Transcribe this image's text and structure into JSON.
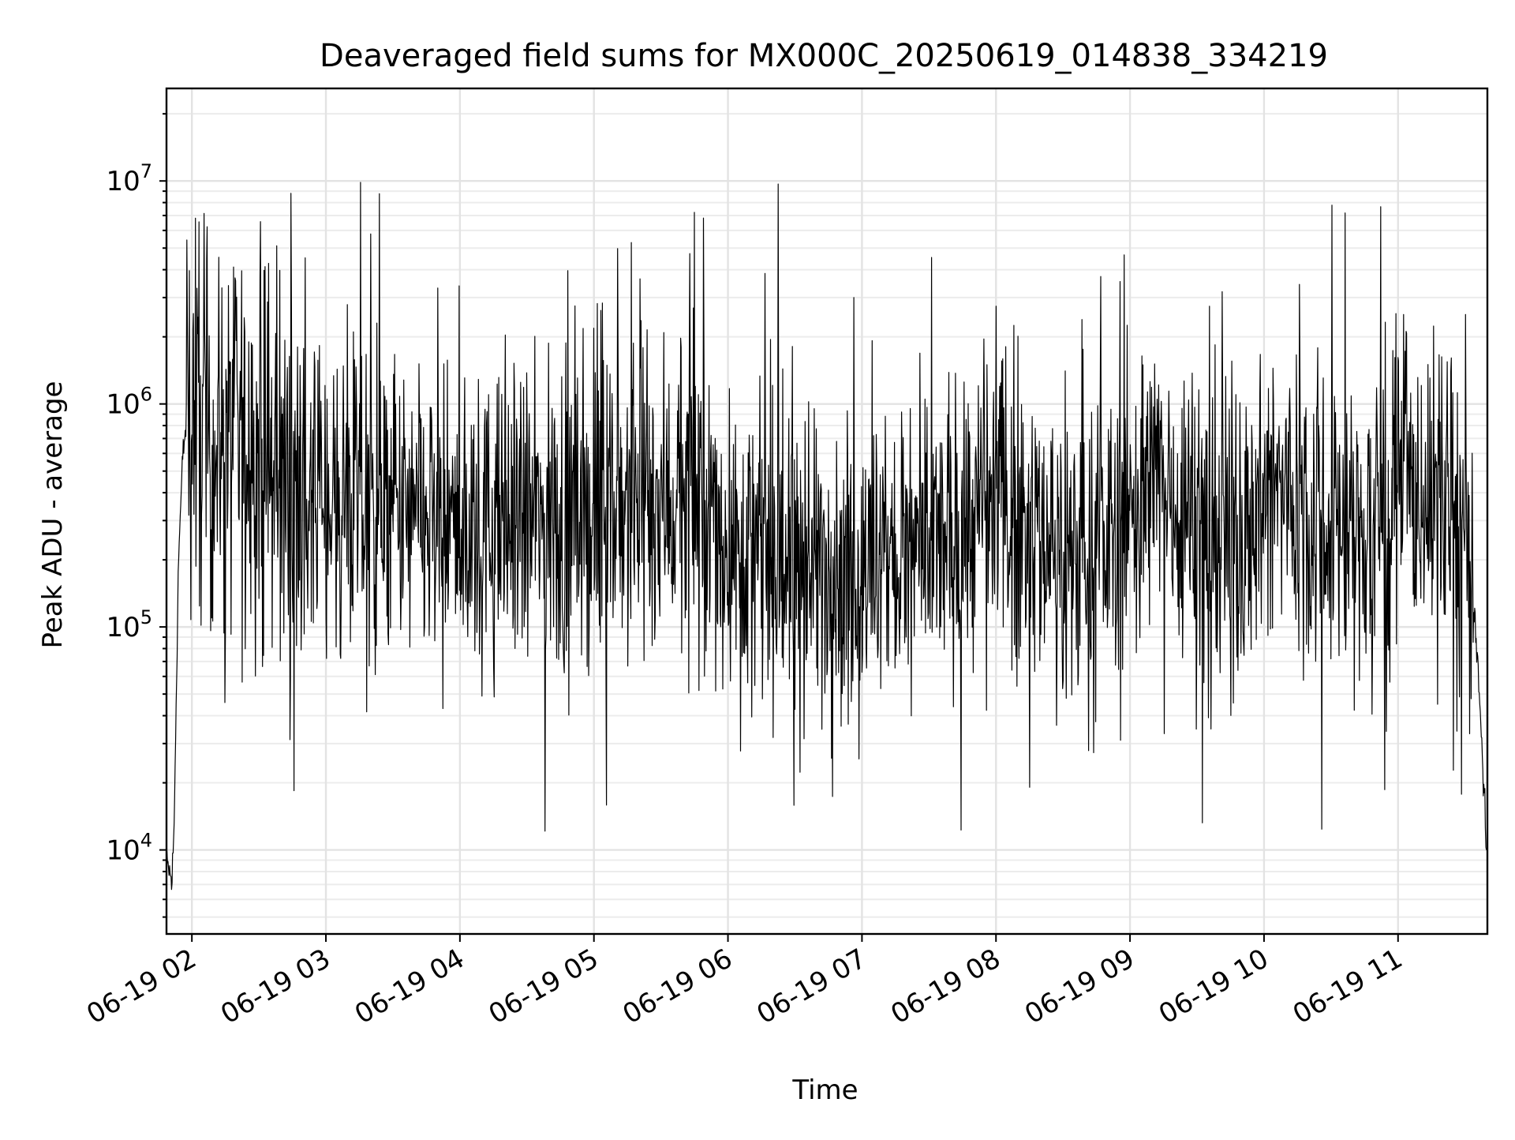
{
  "chart_data": {
    "type": "line",
    "title": "Deaveraged field sums for MX000C_20250619_014838_334219",
    "xlabel": "Time",
    "ylabel": "Peak ADU - average",
    "yscale": "log",
    "xlim": [
      "06-19 01:48:38",
      "06-19 11:40:00"
    ],
    "ylim": [
      4200,
      26000000
    ],
    "grid": true,
    "x_ticks": [
      "06-19 02",
      "06-19 03",
      "06-19 04",
      "06-19 05",
      "06-19 06",
      "06-19 07",
      "06-19 08",
      "06-19 09",
      "06-19 10",
      "06-19 11"
    ],
    "y_ticks": [
      {
        "value": 10000,
        "base": "10",
        "exp": "4"
      },
      {
        "value": 100000,
        "base": "10",
        "exp": "5"
      },
      {
        "value": 1000000,
        "base": "10",
        "exp": "6"
      },
      {
        "value": 10000000,
        "base": "10",
        "exp": "7"
      }
    ],
    "series": [
      {
        "color": "#000000",
        "x": [
          "06-19 01:48:38",
          "06-19 01:50",
          "06-19 01:51",
          "06-19 01:52",
          "06-19 01:54",
          "06-19 01:56",
          "06-19 01:58",
          "06-19 02:00",
          "06-19 02:02",
          "06-19 02:05",
          "06-19 02:10",
          "06-19 02:15",
          "06-19 02:20",
          "06-19 02:25",
          "06-19 02:30",
          "06-19 02:35",
          "06-19 02:40",
          "06-19 02:45",
          "06-19 02:50",
          "06-19 03:00",
          "06-19 03:15",
          "06-19 03:30",
          "06-19 03:45",
          "06-19 04:00",
          "06-19 04:15",
          "06-19 04:30",
          "06-19 04:45",
          "06-19 05:00",
          "06-19 05:15",
          "06-19 05:30",
          "06-19 05:45",
          "06-19 06:00",
          "06-19 06:15",
          "06-19 06:30",
          "06-19 06:45",
          "06-19 07:00",
          "06-19 07:15",
          "06-19 07:30",
          "06-19 07:45",
          "06-19 08:00",
          "06-19 08:15",
          "06-19 08:30",
          "06-19 08:45",
          "06-19 09:00",
          "06-19 09:15",
          "06-19 09:30",
          "06-19 09:45",
          "06-19 10:00",
          "06-19 10:15",
          "06-19 10:30",
          "06-19 10:45",
          "06-19 11:00",
          "06-19 11:15",
          "06-19 11:25",
          "06-19 11:32",
          "06-19 11:36",
          "06-19 11:38",
          "06-19 11:40"
        ],
        "y": [
          8500,
          8000,
          7000,
          12000,
          200000,
          600000,
          900000,
          1100000,
          900000,
          800000,
          700000,
          650000,
          700000,
          600000,
          550000,
          500000,
          450000,
          420000,
          400000,
          380000,
          350000,
          300000,
          280000,
          260000,
          270000,
          300000,
          280000,
          320000,
          350000,
          380000,
          350000,
          250000,
          200000,
          180000,
          200000,
          160000,
          200000,
          220000,
          250000,
          380000,
          300000,
          220000,
          200000,
          350000,
          450000,
          300000,
          250000,
          380000,
          400000,
          300000,
          250000,
          380000,
          400000,
          320000,
          200000,
          60000,
          25000,
          8000
        ]
      }
    ]
  }
}
